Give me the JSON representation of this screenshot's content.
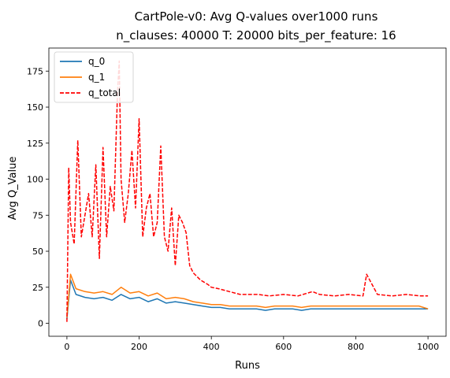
{
  "chart_data": {
    "type": "line",
    "title": "CartPole-v0: Avg Q-values over1000 runs",
    "subtitle": "n_clauses: 40000 T: 20000 bits_per_feature: 16",
    "xlabel": "Runs",
    "ylabel": "Avg Q_Value",
    "xlim": [
      -50,
      1050
    ],
    "ylim": [
      -9,
      191
    ],
    "xticks": [
      0,
      200,
      400,
      600,
      800,
      1000
    ],
    "yticks": [
      0,
      25,
      50,
      75,
      100,
      125,
      150,
      175
    ],
    "grid": false,
    "legend_position": "upper-left",
    "series": [
      {
        "name": "q_0",
        "color": "#1f77b4",
        "linestyle": "solid",
        "x": [
          0,
          10,
          25,
          50,
          75,
          100,
          125,
          150,
          175,
          200,
          225,
          250,
          275,
          300,
          325,
          350,
          375,
          400,
          425,
          450,
          475,
          500,
          525,
          550,
          575,
          600,
          625,
          650,
          675,
          700,
          725,
          750,
          775,
          800,
          825,
          850,
          875,
          900,
          925,
          950,
          975,
          1000
        ],
        "values": [
          3,
          30,
          20,
          18,
          17,
          18,
          16,
          20,
          17,
          18,
          15,
          17,
          14,
          15,
          14,
          13,
          12,
          11,
          11,
          10,
          10,
          10,
          10,
          9,
          10,
          10,
          10,
          9,
          10,
          10,
          10,
          10,
          10,
          10,
          10,
          10,
          10,
          10,
          10,
          10,
          10,
          10
        ]
      },
      {
        "name": "q_1",
        "color": "#ff7f0e",
        "linestyle": "solid",
        "x": [
          0,
          10,
          25,
          50,
          75,
          100,
          125,
          150,
          175,
          200,
          225,
          250,
          275,
          300,
          325,
          350,
          375,
          400,
          425,
          450,
          475,
          500,
          525,
          550,
          575,
          600,
          625,
          650,
          675,
          700,
          725,
          750,
          775,
          800,
          825,
          850,
          875,
          900,
          925,
          950,
          975,
          1000
        ],
        "values": [
          4,
          34,
          24,
          22,
          21,
          22,
          20,
          25,
          21,
          22,
          19,
          21,
          17,
          18,
          17,
          15,
          14,
          13,
          13,
          12,
          12,
          12,
          12,
          11,
          12,
          12,
          12,
          11,
          12,
          12,
          12,
          12,
          12,
          12,
          12,
          12,
          12,
          12,
          12,
          12,
          12,
          10
        ]
      },
      {
        "name": "q_total",
        "color": "#ff0000",
        "linestyle": "dashed",
        "x": [
          0,
          5,
          10,
          20,
          30,
          40,
          50,
          60,
          70,
          80,
          90,
          100,
          110,
          120,
          130,
          140,
          145,
          150,
          160,
          170,
          180,
          190,
          200,
          210,
          220,
          230,
          240,
          250,
          260,
          270,
          280,
          290,
          300,
          310,
          320,
          330,
          340,
          350,
          370,
          390,
          400,
          420,
          450,
          480,
          500,
          530,
          560,
          600,
          640,
          680,
          700,
          740,
          780,
          820,
          830,
          860,
          900,
          940,
          980,
          1000
        ],
        "values": [
          1,
          108,
          70,
          55,
          127,
          60,
          75,
          90,
          60,
          110,
          45,
          122,
          60,
          95,
          78,
          160,
          182,
          100,
          70,
          90,
          120,
          80,
          142,
          60,
          80,
          90,
          60,
          70,
          123,
          60,
          50,
          80,
          40,
          75,
          70,
          63,
          40,
          35,
          30,
          27,
          25,
          24,
          22,
          20,
          20,
          20,
          19,
          20,
          19,
          22,
          20,
          19,
          20,
          19,
          34,
          20,
          19,
          20,
          19,
          19
        ]
      }
    ]
  }
}
